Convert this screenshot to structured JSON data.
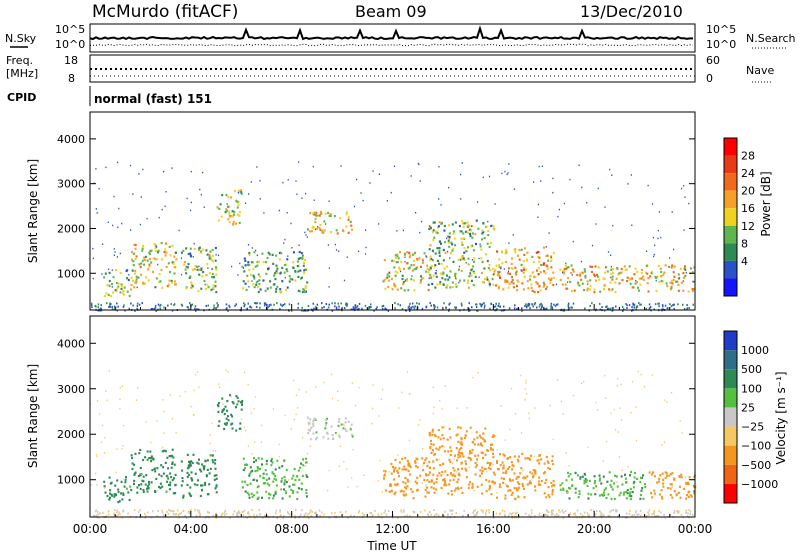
{
  "header": {
    "station": "McMurdo (fitACF)",
    "beam": "Beam 09",
    "date": "13/Dec/2010"
  },
  "top_panel": {
    "left_label": "N.Sky",
    "right_label": "N.Search",
    "ticks_left": [
      "10^5",
      "10^0"
    ],
    "ticks_right": [
      "10^5",
      "10^0"
    ]
  },
  "freq_panel": {
    "label_line1": "Freq.",
    "label_line2": "[MHz]",
    "ticks_left": [
      "18",
      "8"
    ],
    "ticks_right": [
      "60",
      "0"
    ],
    "right_label": "Nave"
  },
  "cpid_panel": {
    "label": "CPID",
    "text": "normal (fast) 151"
  },
  "chart_data": [
    {
      "type": "heatmap",
      "name": "power",
      "ylabel": "Slant Range [km]",
      "ylim": [
        180,
        4600
      ],
      "yticks": [
        1000,
        2000,
        3000,
        4000
      ],
      "xlim": [
        0,
        24
      ],
      "colorbar": {
        "label": "Power [dB]",
        "ticks": [
          "4",
          "8",
          "12",
          "16",
          "20",
          "24",
          "28"
        ],
        "colors": [
          "#1414ff",
          "#2952c8",
          "#2e8a55",
          "#5fb64f",
          "#f0d21e",
          "#f5a028",
          "#f06a19",
          "#e83a14",
          "#ff0000"
        ]
      },
      "echo_regions": [
        {
          "t0": 0.5,
          "t1": 1.6,
          "r0": 500,
          "r1": 1100,
          "power": 14
        },
        {
          "t0": 1.6,
          "t1": 3.4,
          "r0": 700,
          "r1": 1700,
          "power": 18
        },
        {
          "t0": 3.6,
          "t1": 5.0,
          "r0": 600,
          "r1": 1600,
          "power": 14
        },
        {
          "t0": 5.0,
          "t1": 6.0,
          "r0": 2100,
          "r1": 2900,
          "power": 16
        },
        {
          "t0": 6.0,
          "t1": 8.6,
          "r0": 600,
          "r1": 1500,
          "power": 12
        },
        {
          "t0": 8.6,
          "t1": 10.4,
          "r0": 1900,
          "r1": 2400,
          "power": 20
        },
        {
          "t0": 11.6,
          "t1": 13.4,
          "r0": 600,
          "r1": 1500,
          "power": 18
        },
        {
          "t0": 13.4,
          "t1": 16.0,
          "r0": 700,
          "r1": 2200,
          "power": 14
        },
        {
          "t0": 16.0,
          "t1": 18.4,
          "r0": 600,
          "r1": 1600,
          "power": 22
        },
        {
          "t0": 18.6,
          "t1": 22.0,
          "r0": 600,
          "r1": 1200,
          "power": 20
        },
        {
          "t0": 22.0,
          "t1": 24.0,
          "r0": 600,
          "r1": 1200,
          "power": 20
        }
      ]
    },
    {
      "type": "heatmap",
      "name": "velocity",
      "ylabel": "Slant Range [km]",
      "xlabel": "Time UT",
      "ylim": [
        180,
        4600
      ],
      "yticks": [
        1000,
        2000,
        3000,
        4000
      ],
      "xlim": [
        0,
        24
      ],
      "xticks": [
        "00:00",
        "04:00",
        "08:00",
        "12:00",
        "16:00",
        "20:00",
        "00:00"
      ],
      "colorbar": {
        "label": "Velocity [m s⁻¹]",
        "ticks": [
          "1000",
          "500",
          "100",
          "25",
          "−25",
          "−100",
          "−500",
          "−1000"
        ],
        "colors": [
          "#1e3cc8",
          "#2e6e88",
          "#2e8a55",
          "#55c040",
          "#c8c8c8",
          "#f5c864",
          "#f5961e",
          "#f06414",
          "#ff0000"
        ]
      },
      "echo_regions": [
        {
          "t0": 0.5,
          "t1": 1.6,
          "r0": 500,
          "r1": 1100,
          "velocity": 150
        },
        {
          "t0": 1.6,
          "t1": 3.4,
          "r0": 700,
          "r1": 1700,
          "velocity": 300
        },
        {
          "t0": 3.6,
          "t1": 5.0,
          "r0": 600,
          "r1": 1600,
          "velocity": 300
        },
        {
          "t0": 5.0,
          "t1": 6.0,
          "r0": 2100,
          "r1": 2900,
          "velocity": 300
        },
        {
          "t0": 6.0,
          "t1": 8.6,
          "r0": 600,
          "r1": 1500,
          "velocity": 80
        },
        {
          "t0": 8.6,
          "t1": 10.4,
          "r0": 1900,
          "r1": 2400,
          "velocity": 10
        },
        {
          "t0": 11.6,
          "t1": 13.4,
          "r0": 600,
          "r1": 1500,
          "velocity": -300
        },
        {
          "t0": 13.4,
          "t1": 16.0,
          "r0": 700,
          "r1": 2200,
          "velocity": -300
        },
        {
          "t0": 16.0,
          "t1": 18.4,
          "r0": 600,
          "r1": 1600,
          "velocity": -300
        },
        {
          "t0": 18.6,
          "t1": 22.0,
          "r0": 600,
          "r1": 1200,
          "velocity": 80
        },
        {
          "t0": 22.0,
          "t1": 24.0,
          "r0": 600,
          "r1": 1200,
          "velocity": -300
        }
      ]
    }
  ]
}
